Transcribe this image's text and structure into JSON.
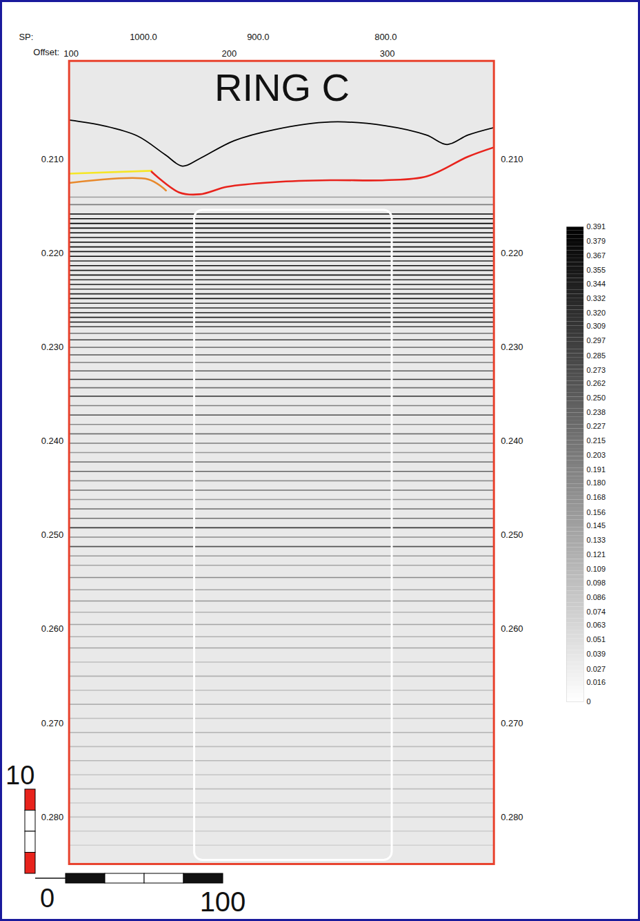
{
  "chart_data": {
    "type": "seismic_section",
    "title": "RING C",
    "x_label": "Offset:",
    "xlim": [
      98.7,
      367.4
    ],
    "xticks": [
      100,
      200,
      300
    ],
    "sp_label": "SP:",
    "sp_ticks": [
      {
        "value": 145.7,
        "label": "1000.0"
      },
      {
        "value": 218.3,
        "label": "900.0"
      },
      {
        "value": 299.0,
        "label": "800.0"
      }
    ],
    "ylim": [
      0.1995,
      0.285
    ],
    "yticks": [
      {
        "value": 0.21,
        "label": "0.210"
      },
      {
        "value": 0.22,
        "label": "0.220"
      },
      {
        "value": 0.23,
        "label": "0.230"
      },
      {
        "value": 0.24,
        "label": "0.240"
      },
      {
        "value": 0.25,
        "label": "0.250"
      },
      {
        "value": 0.26,
        "label": "0.260"
      },
      {
        "value": 0.27,
        "label": "0.270"
      },
      {
        "value": 0.28,
        "label": "0.280"
      }
    ],
    "horizons": [
      {
        "color": "#000000",
        "x": [
          98.7,
          120.4,
          142,
          159.6,
          170.4,
          181.3,
          203,
          229,
          264,
          298.7,
          324.8,
          337.8,
          350.9,
          367.4
        ],
        "y": [
          0.2058,
          0.2064,
          0.2075,
          0.2095,
          0.2107,
          0.2099,
          0.208,
          0.2068,
          0.206,
          0.2064,
          0.2074,
          0.2084,
          0.2074,
          0.2066
        ]
      },
      {
        "color": "#f5e626",
        "x": [
          98.7,
          150.9
        ],
        "y": [
          0.2115,
          0.2112
        ]
      },
      {
        "color": "#e8892c",
        "x": [
          98.7,
          148.7,
          160
        ],
        "y": [
          0.2125,
          0.2121,
          0.2133
        ]
      },
      {
        "color": "#e8231c",
        "x": [
          150.9,
          168.3,
          181.3,
          198.7,
          229.1,
          263.9,
          298.7,
          324.8,
          350.9,
          367.4
        ],
        "y": [
          0.2113,
          0.2135,
          0.2137,
          0.2129,
          0.2124,
          0.2122,
          0.2122,
          0.2118,
          0.2097,
          0.2087
        ]
      }
    ],
    "reflectors": [
      [
        0.214,
        0.15
      ],
      [
        0.2148,
        0.2
      ],
      [
        0.2158,
        0.39
      ],
      [
        0.2163,
        0.39
      ],
      [
        0.2168,
        0.39
      ],
      [
        0.2173,
        0.38
      ],
      [
        0.2178,
        0.39
      ],
      [
        0.2183,
        0.36
      ],
      [
        0.2188,
        0.39
      ],
      [
        0.2193,
        0.37
      ],
      [
        0.2198,
        0.35
      ],
      [
        0.2203,
        0.39
      ],
      [
        0.2208,
        0.33
      ],
      [
        0.2213,
        0.37
      ],
      [
        0.2218,
        0.34
      ],
      [
        0.2223,
        0.36
      ],
      [
        0.2228,
        0.32
      ],
      [
        0.2233,
        0.35
      ],
      [
        0.2238,
        0.3
      ],
      [
        0.2243,
        0.34
      ],
      [
        0.2248,
        0.36
      ],
      [
        0.2253,
        0.31
      ],
      [
        0.2258,
        0.33
      ],
      [
        0.2263,
        0.3
      ],
      [
        0.2268,
        0.34
      ],
      [
        0.2273,
        0.36
      ],
      [
        0.2278,
        0.3
      ],
      [
        0.2285,
        0.22
      ],
      [
        0.2292,
        0.3
      ],
      [
        0.23,
        0.2
      ],
      [
        0.2308,
        0.26
      ],
      [
        0.2316,
        0.2
      ],
      [
        0.2325,
        0.25
      ],
      [
        0.2334,
        0.3
      ],
      [
        0.2343,
        0.22
      ],
      [
        0.2352,
        0.28
      ],
      [
        0.2362,
        0.2
      ],
      [
        0.2372,
        0.24
      ],
      [
        0.2382,
        0.18
      ],
      [
        0.2392,
        0.22
      ],
      [
        0.2402,
        0.2
      ],
      [
        0.2412,
        0.16
      ],
      [
        0.2422,
        0.2
      ],
      [
        0.2432,
        0.24
      ],
      [
        0.2442,
        0.17
      ],
      [
        0.2452,
        0.22
      ],
      [
        0.2462,
        0.16
      ],
      [
        0.2472,
        0.2
      ],
      [
        0.2482,
        0.22
      ],
      [
        0.2492,
        0.3
      ],
      [
        0.2502,
        0.18
      ],
      [
        0.2512,
        0.26
      ],
      [
        0.2522,
        0.16
      ],
      [
        0.2532,
        0.14
      ],
      [
        0.2545,
        0.18
      ],
      [
        0.2558,
        0.14
      ],
      [
        0.257,
        0.16
      ],
      [
        0.2582,
        0.12
      ],
      [
        0.2595,
        0.14
      ],
      [
        0.2608,
        0.12
      ],
      [
        0.262,
        0.14
      ],
      [
        0.2635,
        0.1
      ],
      [
        0.265,
        0.12
      ],
      [
        0.2665,
        0.1
      ],
      [
        0.268,
        0.12
      ],
      [
        0.2695,
        0.1
      ],
      [
        0.271,
        0.12
      ],
      [
        0.2725,
        0.1
      ],
      [
        0.274,
        0.11
      ],
      [
        0.2755,
        0.09
      ],
      [
        0.277,
        0.1
      ],
      [
        0.2785,
        0.08
      ],
      [
        0.28,
        0.09
      ],
      [
        0.2815,
        0.08
      ],
      [
        0.283,
        0.07
      ]
    ],
    "highlight_box": {
      "x": [
        178,
        303
      ],
      "y": [
        0.2154,
        0.2846
      ],
      "color": "#ffffff"
    },
    "colorbar": {
      "lim": [
        0,
        0.391
      ],
      "ticks": [
        {
          "value": 0.391,
          "label": "0.391"
        },
        {
          "value": 0.379,
          "label": "0.379"
        },
        {
          "value": 0.367,
          "label": "0.367"
        },
        {
          "value": 0.355,
          "label": "0.355"
        },
        {
          "value": 0.344,
          "label": "0.344"
        },
        {
          "value": 0.332,
          "label": "0.332"
        },
        {
          "value": 0.32,
          "label": "0.320"
        },
        {
          "value": 0.309,
          "label": "0.309"
        },
        {
          "value": 0.297,
          "label": "0.297"
        },
        {
          "value": 0.285,
          "label": "0.285"
        },
        {
          "value": 0.273,
          "label": "0.273"
        },
        {
          "value": 0.262,
          "label": "0.262"
        },
        {
          "value": 0.25,
          "label": "0.250"
        },
        {
          "value": 0.238,
          "label": "0.238"
        },
        {
          "value": 0.227,
          "label": "0.227"
        },
        {
          "value": 0.215,
          "label": "0.215"
        },
        {
          "value": 0.203,
          "label": "0.203"
        },
        {
          "value": 0.191,
          "label": "0.191"
        },
        {
          "value": 0.18,
          "label": "0.180"
        },
        {
          "value": 0.168,
          "label": "0.168"
        },
        {
          "value": 0.156,
          "label": "0.156"
        },
        {
          "value": 0.145,
          "label": "0.145"
        },
        {
          "value": 0.133,
          "label": "0.133"
        },
        {
          "value": 0.121,
          "label": "0.121"
        },
        {
          "value": 0.109,
          "label": "0.109"
        },
        {
          "value": 0.098,
          "label": "0.098"
        },
        {
          "value": 0.086,
          "label": "0.086"
        },
        {
          "value": 0.074,
          "label": "0.074"
        },
        {
          "value": 0.063,
          "label": "0.063"
        },
        {
          "value": 0.051,
          "label": "0.051"
        },
        {
          "value": 0.039,
          "label": "0.039"
        },
        {
          "value": 0.027,
          "label": "0.027"
        },
        {
          "value": 0.016,
          "label": "0.016"
        },
        {
          "value": 0,
          "label": "0"
        }
      ]
    },
    "scale_bar": {
      "origin": 0,
      "vertical": 10,
      "horizontal": 100
    }
  }
}
